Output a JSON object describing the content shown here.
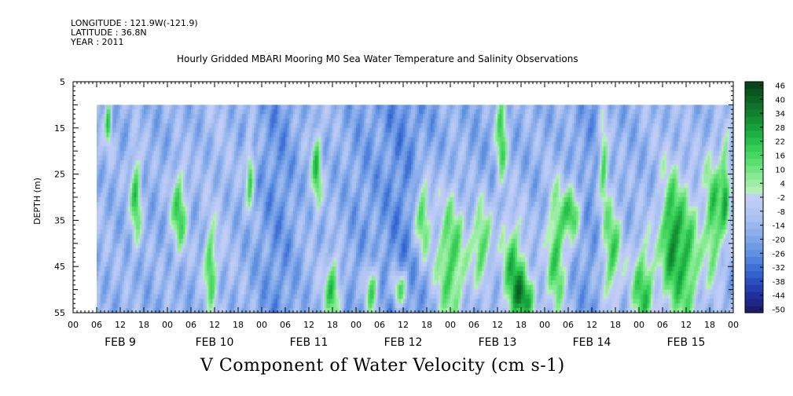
{
  "header": {
    "longitude": "LONGITUDE : 121.9W(-121.9)",
    "latitude": "LATITUDE : 36.8N",
    "year": "YEAR : 2011",
    "title": "Hourly Gridded MBARI Mooring M0 Sea Water Temperature and Salinity Observations"
  },
  "bottom_title": "V Component of Water Velocity (cm s-1)",
  "chart_data": {
    "type": "heatmap",
    "title": "Hourly Gridded MBARI Mooring M0 Sea Water Temperature and Salinity Observations",
    "xlabel": "",
    "ylabel": "DEPTH (m)",
    "variable": "V Component of Water Velocity (cm s-1)",
    "y_axis": {
      "range": [
        5,
        55
      ],
      "inverted": true,
      "ticks": [
        5,
        15,
        25,
        35,
        45,
        55
      ]
    },
    "x_axis": {
      "range_hours": [
        0,
        168
      ],
      "hour_tick_labels": [
        "00",
        "06",
        "12",
        "18",
        "00",
        "06",
        "12",
        "18",
        "00",
        "06",
        "12",
        "18",
        "00",
        "06",
        "12",
        "18",
        "00",
        "06",
        "12",
        "18",
        "00",
        "06",
        "12",
        "18",
        "00",
        "06",
        "12",
        "18",
        "00"
      ],
      "day_labels": [
        "FEB  9",
        "FEB 10",
        "FEB 11",
        "FEB 12",
        "FEB 13",
        "FEB 14",
        "FEB 15"
      ]
    },
    "data_extent": {
      "first_hour": 6,
      "last_hour": 168,
      "shallowest_depth": 10,
      "deepest_depth": 55
    },
    "colorbar": {
      "labels": [
        "46",
        "40",
        "34",
        "28",
        "22",
        "16",
        "10",
        "4",
        "-2",
        "-8",
        "-14",
        "-20",
        "-26",
        "-32",
        "-38",
        "-44",
        "-50"
      ],
      "levels": [
        -50,
        -47,
        -44,
        -41,
        -38,
        -35,
        -32,
        -29,
        -26,
        -23,
        -20,
        -17,
        -14,
        -11,
        -8,
        -5,
        -2,
        1,
        4,
        7,
        10,
        13,
        16,
        19,
        22,
        25,
        28,
        31,
        34,
        37,
        40,
        43,
        46,
        49
      ],
      "colors": [
        "#1b1c6e",
        "#1e2686",
        "#20309a",
        "#2440ae",
        "#2a50be",
        "#3462cc",
        "#4070d6",
        "#4f80dc",
        "#6090e0",
        "#6f9ae4",
        "#7ea5e8",
        "#8caeeb",
        "#9ab8ee",
        "#a8c1f0",
        "#b3c6f3",
        "#bccbf5",
        "#c4cdf6",
        "#b3f0b8",
        "#9ceda4",
        "#86ea92",
        "#6ee580",
        "#5ade70",
        "#46d662",
        "#36cc56",
        "#28c04c",
        "#1fb044",
        "#18a03c",
        "#149034",
        "#11802e",
        "#0f7228",
        "#0c6322",
        "#0a541d",
        "#084618"
      ]
    },
    "field_description": "Mostly negative velocities (blue) across the depth range with green positive bands reaching the surface near Feb 9 06h, Feb 12 18h, Feb 13 18h and strengthening toward depth on Feb 12-15."
  }
}
